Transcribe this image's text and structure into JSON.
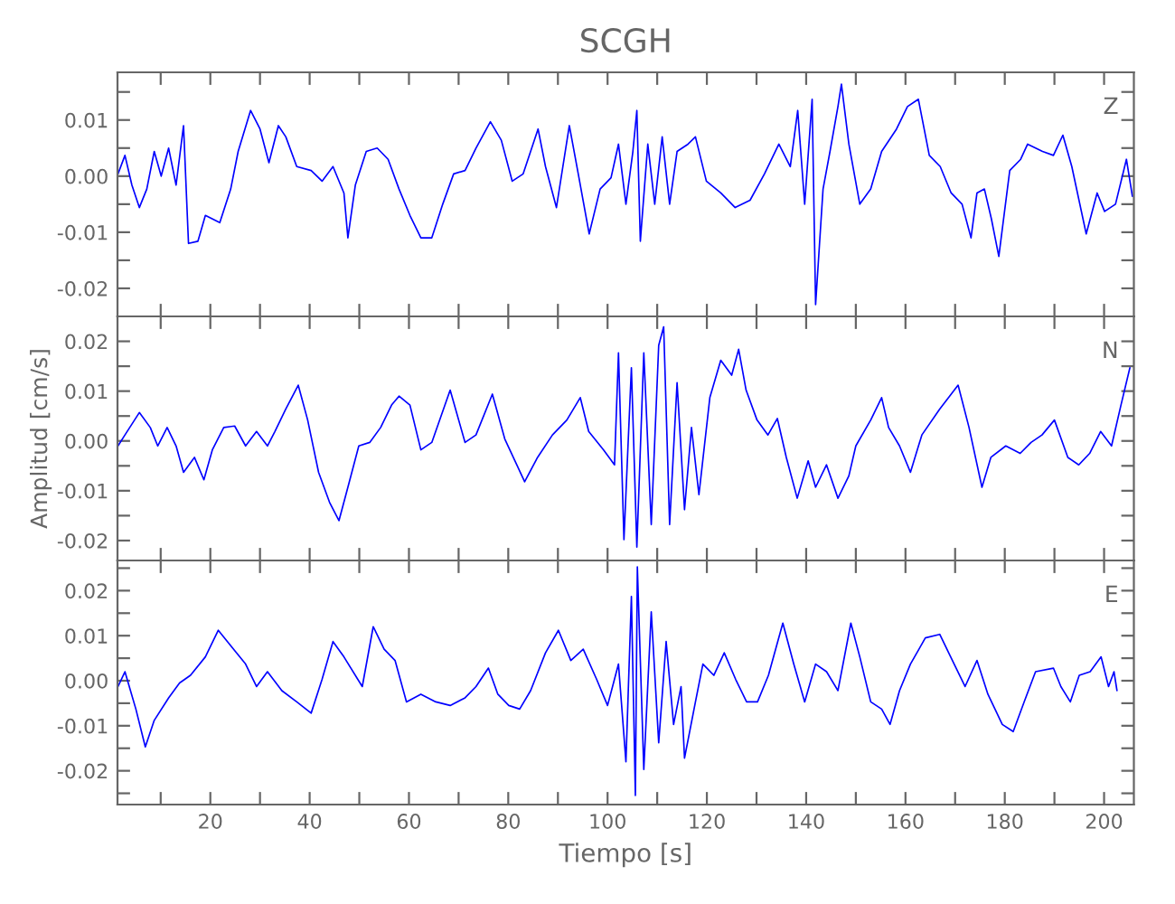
{
  "chart_data": [
    {
      "type": "line",
      "title": "SCGH",
      "annotations": [
        "Z"
      ],
      "xlim": [
        1.3,
        206
      ],
      "ylim": [
        -0.025,
        0.0185
      ],
      "tick_labels": "y",
      "xticks": [
        {
          "value": 10,
          "label": null
        },
        {
          "value": 20,
          "label": null
        },
        {
          "value": 30,
          "label": null
        },
        {
          "value": 40,
          "label": null
        },
        {
          "value": 50,
          "label": null
        },
        {
          "value": 60,
          "label": null
        },
        {
          "value": 70,
          "label": null
        },
        {
          "value": 80,
          "label": null
        },
        {
          "value": 90,
          "label": null
        },
        {
          "value": 100,
          "label": null
        },
        {
          "value": 110,
          "label": null
        },
        {
          "value": 120,
          "label": null
        },
        {
          "value": 130,
          "label": null
        },
        {
          "value": 140,
          "label": null
        },
        {
          "value": 150,
          "label": null
        },
        {
          "value": 160,
          "label": null
        },
        {
          "value": 170,
          "label": null
        },
        {
          "value": 180,
          "label": null
        },
        {
          "value": 190,
          "label": null
        },
        {
          "value": 200,
          "label": null
        }
      ],
      "yticks": [
        -0.02,
        {
          "value": -0.015,
          "label": null
        },
        -0.01,
        {
          "value": -0.005,
          "label": null
        },
        {
          "value": 0,
          "label": "0.00"
        },
        {
          "value": 0.005,
          "label": null
        },
        0.01,
        {
          "value": 0.015,
          "label": null
        }
      ],
      "series": [
        {
          "color": "#0000ff",
          "x": [
            1.4,
            2.8,
            4.2,
            5.7,
            7.2,
            8.7,
            10.1,
            11.6,
            13.1,
            14.6,
            15.6,
            17.5,
            19,
            21.9,
            24.1,
            25.6,
            28.1,
            30,
            31.8,
            33.7,
            35.2,
            37.4,
            40.3,
            42.5,
            44.7,
            46.9,
            47.7,
            49.2,
            51.4,
            53.6,
            55.8,
            58,
            60.2,
            62.4,
            64.6,
            66.8,
            69,
            71.3,
            73.5,
            76.4,
            78.6,
            80.8,
            83,
            86,
            87.5,
            89.7,
            92.3,
            94.1,
            96.3,
            98.5,
            100.7,
            102.2,
            103.7,
            105.1,
            105.9,
            106.6,
            108.1,
            109.5,
            111,
            112.5,
            114,
            116.2,
            117.7,
            119.9,
            122.8,
            125.7,
            128.7,
            131.6,
            134.5,
            136.8,
            138.3,
            139.7,
            141.2,
            141.9,
            143.4,
            144.8,
            146.4,
            147.1,
            148.6,
            150.8,
            153,
            155.2,
            158.2,
            160.4,
            162.6,
            164.8,
            167,
            169.2,
            171.4,
            173.2,
            174.4,
            175.9,
            177.3,
            178.8,
            181,
            183.2,
            184.6,
            187.6,
            189.8,
            191.7,
            193.5,
            196.4,
            198.6,
            200.1,
            202.3,
            204.5,
            205.7
          ],
          "values": [
            0.0004,
            0.0037,
            -0.0016,
            -0.0056,
            -0.0023,
            0.0044,
            0,
            0.005,
            -0.0016,
            0.009,
            -0.012,
            -0.0116,
            -0.007,
            -0.0083,
            -0.0023,
            0.0044,
            0.0117,
            0.0084,
            0.0024,
            0.009,
            0.007,
            0.0017,
            0.001,
            -0.0009,
            0.0017,
            -0.003,
            -0.011,
            -0.0016,
            0.0044,
            0.005,
            0.003,
            -0.0023,
            -0.007,
            -0.011,
            -0.011,
            -0.005,
            0.0004,
            0.001,
            0.005,
            0.0097,
            0.0064,
            -0.0009,
            0.0004,
            0.0084,
            0.0017,
            -0.0056,
            0.009,
            0.0004,
            -0.0103,
            -0.0023,
            -0.0003,
            0.0057,
            -0.005,
            0.0044,
            0.0117,
            -0.0116,
            0.0057,
            -0.005,
            0.007,
            -0.005,
            0.0044,
            0.0057,
            0.007,
            -0.0009,
            -0.003,
            -0.0056,
            -0.0043,
            0.0004,
            0.0057,
            0.0017,
            0.0117,
            -0.005,
            0.0137,
            -0.0229,
            -0.0023,
            0.0044,
            0.0124,
            0.0164,
            0.0057,
            -0.005,
            -0.0023,
            0.0044,
            0.0084,
            0.0124,
            0.0137,
            0.0037,
            0.0017,
            -0.003,
            -0.005,
            -0.011,
            -0.003,
            -0.0023,
            -0.0076,
            -0.0143,
            0.001,
            0.003,
            0.0057,
            0.0044,
            0.0037,
            0.0073,
            0.0017,
            -0.0103,
            -0.003,
            -0.0063,
            -0.005,
            0.003,
            -0.0036
          ]
        }
      ]
    },
    {
      "type": "line",
      "ylabel": "Amplitud [cm/s]",
      "annotations": [
        "N"
      ],
      "xlim": [
        1.3,
        206
      ],
      "ylim": [
        -0.024,
        0.025
      ],
      "tick_labels": "y",
      "xticks": [
        {
          "value": 10,
          "label": null
        },
        {
          "value": 20,
          "label": null
        },
        {
          "value": 30,
          "label": null
        },
        {
          "value": 40,
          "label": null
        },
        {
          "value": 50,
          "label": null
        },
        {
          "value": 60,
          "label": null
        },
        {
          "value": 70,
          "label": null
        },
        {
          "value": 80,
          "label": null
        },
        {
          "value": 90,
          "label": null
        },
        {
          "value": 100,
          "label": null
        },
        {
          "value": 110,
          "label": null
        },
        {
          "value": 120,
          "label": null
        },
        {
          "value": 130,
          "label": null
        },
        {
          "value": 140,
          "label": null
        },
        {
          "value": 150,
          "label": null
        },
        {
          "value": 160,
          "label": null
        },
        {
          "value": 170,
          "label": null
        },
        {
          "value": 180,
          "label": null
        },
        {
          "value": 190,
          "label": null
        },
        {
          "value": 200,
          "label": null
        }
      ],
      "yticks": [
        -0.02,
        {
          "value": -0.015,
          "label": null
        },
        -0.01,
        {
          "value": -0.005,
          "label": null
        },
        {
          "value": 0,
          "label": "0.00"
        },
        {
          "value": 0.005,
          "label": null
        },
        0.01,
        {
          "value": 0.015,
          "label": null
        },
        0.02
      ],
      "series": [
        {
          "color": "#0000ff",
          "x": [
            1.4,
            2.8,
            5.7,
            7.9,
            9.4,
            11.3,
            13.1,
            14.6,
            16.8,
            18.7,
            20.4,
            22.7,
            24.9,
            27.1,
            29.3,
            31.5,
            33,
            35.2,
            37.7,
            39.6,
            41.8,
            44,
            45.9,
            47.7,
            49.9,
            52.1,
            54.3,
            56.5,
            58,
            60.2,
            62.4,
            64.6,
            68.3,
            71.3,
            73.5,
            76.8,
            79.3,
            83.3,
            85.9,
            88.9,
            91.8,
            94.5,
            96.2,
            99.2,
            101.4,
            102.2,
            103.3,
            104.8,
            105.9,
            107.3,
            108.8,
            110.3,
            111.3,
            112.5,
            114,
            115.5,
            116.9,
            118.4,
            120.6,
            122.8,
            125,
            126.4,
            127.9,
            130.1,
            132.3,
            134.2,
            136,
            138.2,
            140.4,
            141.9,
            144.1,
            146.4,
            148.6,
            150,
            153,
            155.2,
            156.6,
            158.8,
            161,
            163.3,
            166.9,
            170.6,
            172.8,
            175.4,
            177.2,
            180.2,
            183.1,
            185.3,
            187.5,
            190,
            192.7,
            194.9,
            197.1,
            199.3,
            201.5,
            203.4,
            205.2
          ],
          "values": [
            -0.001,
            0.0012,
            0.0057,
            0.0027,
            -0.001,
            0.0027,
            -0.001,
            -0.0063,
            -0.0033,
            -0.0078,
            -0.0018,
            0.0027,
            0.003,
            -0.001,
            0.0019,
            -0.001,
            0.0019,
            0.0064,
            0.0112,
            0.0042,
            -0.0063,
            -0.0123,
            -0.016,
            -0.0093,
            -0.001,
            -0.0003,
            0.0027,
            0.0072,
            0.009,
            0.0072,
            -0.0018,
            -0.0003,
            0.0102,
            -0.0003,
            0.0012,
            0.0094,
            0.0004,
            -0.0082,
            -0.0033,
            0.0012,
            0.0042,
            0.0087,
            0.0019,
            -0.0018,
            -0.0048,
            0.0177,
            -0.0198,
            0.0147,
            -0.0213,
            0.0177,
            -0.0168,
            0.0192,
            0.0229,
            -0.0168,
            0.0117,
            -0.0138,
            0.0027,
            -0.0108,
            0.0087,
            0.0162,
            0.0132,
            0.0184,
            0.0102,
            0.0042,
            0.0012,
            0.0045,
            -0.0033,
            -0.0115,
            -0.004,
            -0.0093,
            -0.0048,
            -0.0115,
            -0.007,
            -0.001,
            0.0042,
            0.0087,
            0.0027,
            -0.001,
            -0.0063,
            0.0012,
            0.0064,
            0.0112,
            0.0027,
            -0.0093,
            -0.0033,
            -0.001,
            -0.0025,
            -0.0003,
            0.0012,
            0.0042,
            -0.0033,
            -0.0048,
            -0.0025,
            0.0019,
            -0.001,
            0.0072,
            0.0147
          ]
        }
      ]
    },
    {
      "type": "line",
      "xlabel": "Tiempo [s]",
      "annotations": [
        "E"
      ],
      "xlim": [
        1.3,
        206
      ],
      "ylim": [
        -0.0275,
        0.0267
      ],
      "xticks": [
        {
          "value": 10,
          "label": null
        },
        20,
        {
          "value": 30,
          "label": null
        },
        40,
        {
          "value": 50,
          "label": null
        },
        60,
        {
          "value": 70,
          "label": null
        },
        80,
        {
          "value": 90,
          "label": null
        },
        100,
        {
          "value": 110,
          "label": null
        },
        120,
        {
          "value": 130,
          "label": null
        },
        140,
        {
          "value": 150,
          "label": null
        },
        160,
        {
          "value": 170,
          "label": null
        },
        180,
        {
          "value": 190,
          "label": null
        },
        200
      ],
      "yticks": [
        {
          "value": -0.025,
          "label": null
        },
        -0.02,
        {
          "value": -0.015,
          "label": null
        },
        -0.01,
        {
          "value": -0.005,
          "label": null
        },
        {
          "value": 0,
          "label": "0.00"
        },
        {
          "value": 0.005,
          "label": null
        },
        0.01,
        {
          "value": 0.015,
          "label": null
        },
        0.02,
        {
          "value": 0.025,
          "label": null
        }
      ],
      "series": [
        {
          "color": "#0000ff",
          "x": [
            1.4,
            2.8,
            5,
            6.9,
            8.7,
            11.6,
            13.8,
            16,
            19,
            21.6,
            24.1,
            27.1,
            29.3,
            31.5,
            34.4,
            37.4,
            40.3,
            42.5,
            44.7,
            46.9,
            50.6,
            52.8,
            55,
            57.2,
            59.5,
            62.4,
            65.4,
            68.3,
            71.3,
            73.5,
            76,
            77.9,
            80.1,
            82.3,
            84.5,
            87.5,
            90.1,
            92.6,
            95.1,
            97.8,
            100,
            102.2,
            103.7,
            104.8,
            105.6,
            106,
            107.3,
            108.8,
            110.3,
            111.8,
            113.3,
            114.8,
            115.5,
            117.7,
            119.2,
            121.4,
            123.5,
            125.8,
            128,
            130.2,
            132.4,
            135.3,
            137.5,
            139.7,
            141.9,
            144.1,
            146.4,
            149,
            150.8,
            153,
            155.2,
            156.9,
            158.8,
            161,
            164,
            166.9,
            169.1,
            172,
            174.4,
            176.6,
            179.5,
            181.7,
            183.9,
            186.2,
            189.8,
            191.3,
            193.2,
            195,
            197.2,
            199.4,
            200.9,
            202,
            202.6
          ],
          "values": [
            -0.0013,
            0.002,
            -0.0063,
            -0.0147,
            -0.0088,
            -0.0038,
            -0.0005,
            0.0012,
            0.0053,
            0.0112,
            0.0078,
            0.0037,
            -0.0013,
            0.002,
            -0.0022,
            -0.0047,
            -0.0072,
            0.0003,
            0.0087,
            0.0053,
            -0.0013,
            0.012,
            0.007,
            0.0045,
            -0.0047,
            -0.003,
            -0.0047,
            -0.0055,
            -0.0038,
            -0.0013,
            0.0028,
            -0.003,
            -0.0055,
            -0.0063,
            -0.0022,
            0.0062,
            0.0112,
            0.0045,
            0.007,
            0.0003,
            -0.0055,
            0.0037,
            -0.018,
            0.0187,
            -0.0255,
            0.0253,
            -0.0197,
            0.0153,
            -0.0138,
            0.0087,
            -0.0097,
            -0.0013,
            -0.0172,
            -0.0047,
            0.0037,
            0.0012,
            0.0062,
            0.0003,
            -0.0047,
            -0.0047,
            0.0012,
            0.0128,
            0.0037,
            -0.0047,
            0.0037,
            0.002,
            -0.0022,
            0.0128,
            0.0053,
            -0.0047,
            -0.0063,
            -0.0097,
            -0.0022,
            0.0037,
            0.0095,
            0.0103,
            0.0053,
            -0.0013,
            0.0045,
            -0.003,
            -0.0097,
            -0.0113,
            -0.0047,
            0.002,
            0.0028,
            -0.0013,
            -0.0047,
            0.0012,
            0.002,
            0.0053,
            -0.0013,
            0.002,
            -0.0022
          ]
        }
      ]
    }
  ]
}
